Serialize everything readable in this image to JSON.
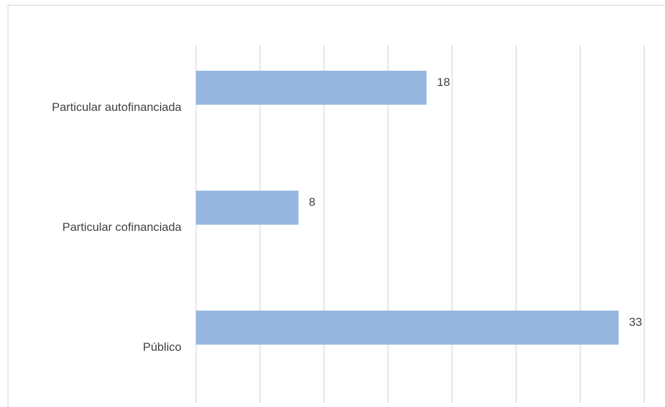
{
  "chart_data": {
    "type": "bar",
    "orientation": "horizontal",
    "title": "",
    "xlabel": "",
    "ylabel": "",
    "categories": [
      "Particular autofinanciada",
      "Particular cofinanciada",
      "Público"
    ],
    "values": [
      18,
      8,
      33
    ],
    "data_labels": [
      "18",
      "8",
      "33"
    ],
    "xlim": [
      0,
      35
    ],
    "grid": true,
    "legend": "none",
    "bar_color": "#95b7df",
    "grid_color": "#d9d9d9",
    "text_color": "#404040"
  }
}
